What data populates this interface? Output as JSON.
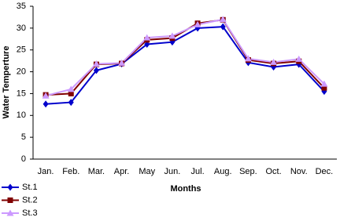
{
  "chart_data": {
    "type": "line",
    "x_label": "Months",
    "y_label": "Water Temperture",
    "categories": [
      "Jan.",
      "Feb.",
      "Mar.",
      "Apr.",
      "May",
      "Jun.",
      "Jul.",
      "Aug.",
      "Sep.",
      "Oct.",
      "Nov.",
      "Dec."
    ],
    "series": [
      {
        "name": "St.1",
        "color": "#0000cc",
        "marker": "diamond",
        "values": [
          12.6,
          13.0,
          20.3,
          21.8,
          26.3,
          26.8,
          30.0,
          30.3,
          22.1,
          21.1,
          21.7,
          15.5
        ]
      },
      {
        "name": "St.2",
        "color": "#800000",
        "marker": "square",
        "values": [
          14.7,
          15.0,
          21.7,
          21.9,
          27.3,
          27.7,
          31.1,
          31.9,
          22.7,
          21.9,
          22.4,
          16.3
        ]
      },
      {
        "name": "St.3",
        "color": "#cc99ff",
        "marker": "triangle",
        "values": [
          14.5,
          16.0,
          21.8,
          22.0,
          27.8,
          28.2,
          30.8,
          32.0,
          23.0,
          22.2,
          22.9,
          17.2
        ]
      }
    ],
    "ylim": [
      0,
      35
    ],
    "yticks": [
      0,
      5,
      10,
      15,
      20,
      25,
      30,
      35
    ],
    "grid": false,
    "legend": "bottom-left"
  }
}
